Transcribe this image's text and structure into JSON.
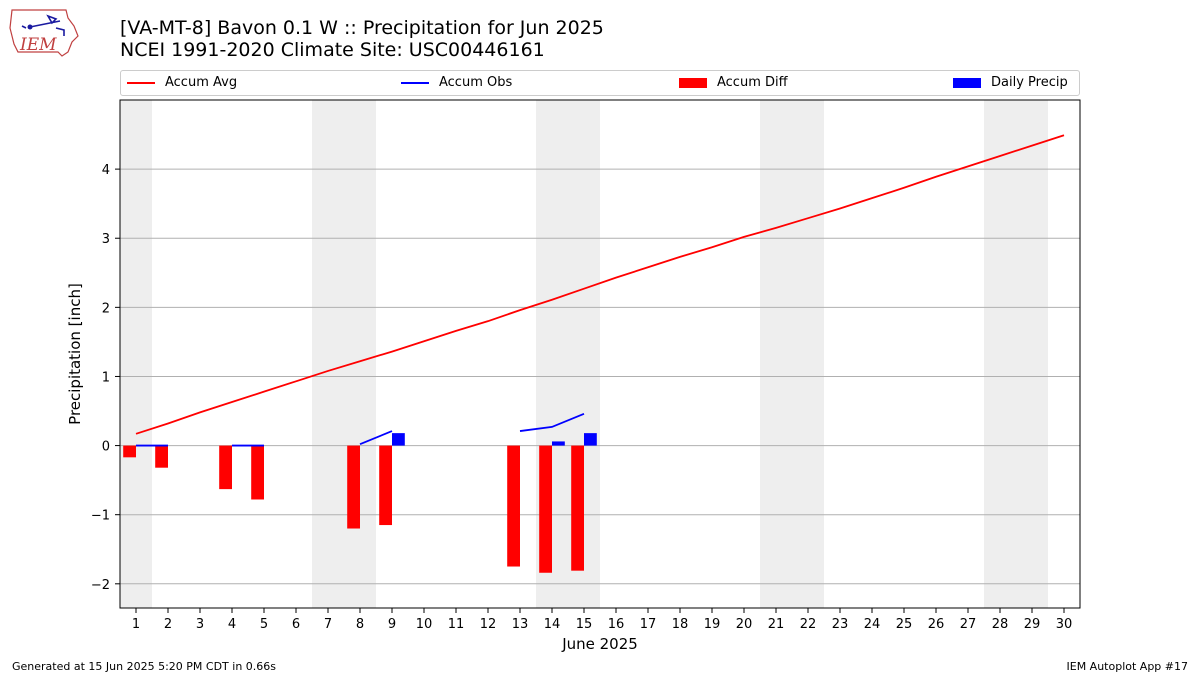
{
  "logo_text": "IEM",
  "title": "[VA-MT-8] Bavon 0.1 W :: Precipitation for Jun 2025",
  "subtitle": "NCEI 1991-2020 Climate Site: USC00446161",
  "footer_left": "Generated at 15 Jun 2025 5:20 PM CDT in 0.66s",
  "footer_right": "IEM Autoplot App #17",
  "colors": {
    "accum_avg": "#ff0000",
    "accum_obs": "#0000ff",
    "accum_diff": "#ff0000",
    "daily_precip": "#0000ff",
    "weekend_shade": "#eeeeee",
    "grid": "#b0b0b0"
  },
  "chart_data": {
    "type": "bar",
    "xlabel": "June 2025",
    "ylabel": "Precipitation [inch]",
    "xlim": [
      0.5,
      30.5
    ],
    "ylim": [
      -2.35,
      5.0
    ],
    "x_ticks": [
      1,
      2,
      3,
      4,
      5,
      6,
      7,
      8,
      9,
      10,
      11,
      12,
      13,
      14,
      15,
      16,
      17,
      18,
      19,
      20,
      21,
      22,
      23,
      24,
      25,
      26,
      27,
      28,
      29,
      30
    ],
    "y_ticks": [
      -2,
      -1,
      0,
      1,
      2,
      3,
      4
    ],
    "y_tick_labels": [
      "−2",
      "−1",
      "0",
      "1",
      "2",
      "3",
      "4"
    ],
    "grid": "horizontal",
    "legend_position": "top",
    "weekend_shading": [
      [
        0.5,
        1.5
      ],
      [
        6.5,
        8.5
      ],
      [
        13.5,
        15.5
      ],
      [
        20.5,
        22.5
      ],
      [
        27.5,
        29.5
      ]
    ],
    "series": [
      {
        "name": "Accum Avg",
        "kind": "line",
        "x": [
          1,
          2,
          3,
          4,
          5,
          6,
          7,
          8,
          9,
          10,
          11,
          12,
          13,
          14,
          15,
          16,
          17,
          18,
          19,
          20,
          21,
          22,
          23,
          24,
          25,
          26,
          27,
          28,
          29,
          30
        ],
        "values": [
          0.17,
          0.32,
          0.48,
          0.63,
          0.78,
          0.93,
          1.08,
          1.22,
          1.36,
          1.51,
          1.66,
          1.8,
          1.96,
          2.11,
          2.27,
          2.43,
          2.58,
          2.73,
          2.87,
          3.02,
          3.15,
          3.29,
          3.43,
          3.58,
          3.73,
          3.89,
          4.04,
          4.19,
          4.34,
          4.49
        ]
      },
      {
        "name": "Accum Obs",
        "kind": "line",
        "segments": [
          {
            "x": [
              1,
              2
            ],
            "values": [
              0.0,
              0.0
            ]
          },
          {
            "x": [
              4,
              5
            ],
            "values": [
              0.0,
              0.0
            ]
          },
          {
            "x": [
              8,
              9
            ],
            "values": [
              0.02,
              0.21
            ]
          },
          {
            "x": [
              13,
              14,
              15
            ],
            "values": [
              0.21,
              0.27,
              0.46
            ]
          }
        ]
      },
      {
        "name": "Accum Diff",
        "kind": "bar",
        "x": [
          1,
          2,
          4,
          5,
          8,
          9,
          13,
          14,
          15
        ],
        "values": [
          -0.17,
          -0.32,
          -0.63,
          -0.78,
          -1.2,
          -1.15,
          -1.75,
          -1.84,
          -1.81
        ]
      },
      {
        "name": "Daily Precip",
        "kind": "bar",
        "x": [
          9,
          14,
          15
        ],
        "values": [
          0.18,
          0.06,
          0.18
        ]
      }
    ]
  }
}
